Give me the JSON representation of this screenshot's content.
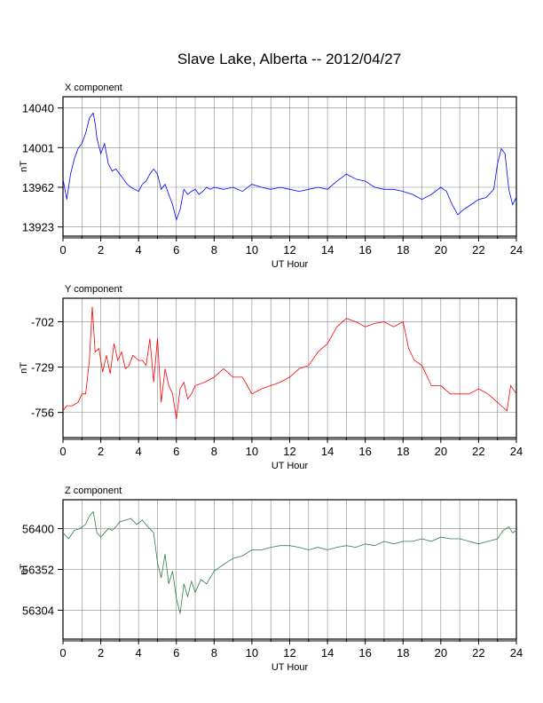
{
  "title": "Slave Lake, Alberta -- 2012/04/27",
  "chart_data": [
    {
      "type": "line",
      "component_label": "X component",
      "xlabel": "UT Hour",
      "ylabel": "nT",
      "xlim": [
        0,
        24
      ],
      "ylim": [
        13914,
        14051
      ],
      "xticks": [
        0,
        2,
        4,
        6,
        8,
        10,
        12,
        14,
        16,
        18,
        20,
        22,
        24
      ],
      "yticks": [
        14040,
        14001,
        13962,
        13923
      ],
      "grid": true,
      "color": "#0000ff",
      "x": [
        0,
        0.2,
        0.4,
        0.6,
        0.8,
        1.0,
        1.2,
        1.4,
        1.6,
        1.7,
        1.8,
        2.0,
        2.2,
        2.4,
        2.6,
        2.8,
        3.0,
        3.2,
        3.4,
        3.6,
        3.8,
        4.0,
        4.2,
        4.4,
        4.6,
        4.8,
        5.0,
        5.2,
        5.4,
        5.6,
        5.8,
        6.0,
        6.2,
        6.4,
        6.6,
        6.8,
        7.0,
        7.2,
        7.4,
        7.6,
        7.8,
        8.0,
        8.5,
        9.0,
        9.5,
        10.0,
        10.5,
        11.0,
        11.5,
        12.0,
        12.5,
        13.0,
        13.5,
        14.0,
        14.5,
        15.0,
        15.5,
        16.0,
        16.5,
        17.0,
        17.5,
        18.0,
        18.5,
        19.0,
        19.5,
        20.0,
        20.3,
        20.6,
        20.9,
        21.2,
        21.6,
        22.0,
        22.4,
        22.8,
        23.0,
        23.2,
        23.4,
        23.6,
        23.8,
        24.0
      ],
      "y": [
        13970,
        13950,
        13975,
        13990,
        14000,
        14005,
        14015,
        14030,
        14035,
        14025,
        14010,
        13995,
        14005,
        13985,
        13978,
        13980,
        13975,
        13970,
        13965,
        13962,
        13960,
        13958,
        13965,
        13968,
        13975,
        13980,
        13975,
        13960,
        13965,
        13955,
        13945,
        13930,
        13940,
        13960,
        13955,
        13958,
        13960,
        13955,
        13958,
        13962,
        13960,
        13962,
        13960,
        13962,
        13958,
        13965,
        13962,
        13960,
        13962,
        13960,
        13958,
        13960,
        13962,
        13960,
        13968,
        13975,
        13970,
        13968,
        13962,
        13960,
        13960,
        13958,
        13955,
        13950,
        13955,
        13962,
        13958,
        13945,
        13935,
        13940,
        13945,
        13950,
        13952,
        13960,
        13985,
        14000,
        13995,
        13960,
        13945,
        13952
      ]
    },
    {
      "type": "line",
      "component_label": "Y component",
      "xlabel": "UT Hour",
      "ylabel": "nT",
      "xlim": [
        0,
        24
      ],
      "ylim": [
        -771,
        -688
      ],
      "xticks": [
        0,
        2,
        4,
        6,
        8,
        10,
        12,
        14,
        16,
        18,
        20,
        22,
        24
      ],
      "yticks": [
        -702,
        -729,
        -756
      ],
      "grid": true,
      "color": "#ff0000",
      "x": [
        0,
        0.2,
        0.5,
        0.8,
        1.0,
        1.2,
        1.4,
        1.55,
        1.7,
        1.9,
        2.1,
        2.3,
        2.5,
        2.7,
        2.9,
        3.1,
        3.3,
        3.5,
        3.7,
        4.0,
        4.2,
        4.4,
        4.6,
        4.8,
        5.0,
        5.2,
        5.4,
        5.6,
        5.8,
        6.0,
        6.2,
        6.4,
        6.6,
        6.8,
        7.0,
        7.5,
        8.0,
        8.5,
        9.0,
        9.5,
        10.0,
        10.5,
        11.0,
        11.5,
        12.0,
        12.5,
        13.0,
        13.5,
        14.0,
        14.5,
        15.0,
        15.5,
        16.0,
        16.5,
        17.0,
        17.5,
        18.0,
        18.3,
        18.6,
        19.0,
        19.5,
        20.0,
        20.5,
        21.0,
        21.5,
        22.0,
        22.5,
        23.0,
        23.3,
        23.5,
        23.7,
        24.0
      ],
      "y": [
        -755,
        -752,
        -752,
        -750,
        -745,
        -745,
        -725,
        -693,
        -720,
        -718,
        -732,
        -722,
        -733,
        -715,
        -725,
        -720,
        -730,
        -728,
        -722,
        -725,
        -725,
        -728,
        -712,
        -738,
        -712,
        -750,
        -730,
        -740,
        -745,
        -760,
        -742,
        -738,
        -748,
        -745,
        -740,
        -738,
        -735,
        -730,
        -735,
        -735,
        -745,
        -742,
        -740,
        -738,
        -735,
        -730,
        -728,
        -720,
        -715,
        -705,
        -700,
        -702,
        -705,
        -703,
        -702,
        -705,
        -702,
        -718,
        -725,
        -728,
        -740,
        -740,
        -745,
        -745,
        -745,
        -742,
        -745,
        -750,
        -753,
        -755,
        -740,
        -745
      ]
    },
    {
      "type": "line",
      "component_label": "Z component",
      "xlabel": "UT Hour",
      "ylabel": "nT",
      "xlim": [
        0,
        24
      ],
      "ylim": [
        56270,
        56434
      ],
      "xticks": [
        0,
        2,
        4,
        6,
        8,
        10,
        12,
        14,
        16,
        18,
        20,
        22,
        24
      ],
      "yticks": [
        56400,
        56352,
        56304
      ],
      "grid": true,
      "color": "#2e7d46",
      "x": [
        0,
        0.3,
        0.6,
        0.9,
        1.2,
        1.4,
        1.6,
        1.8,
        2.0,
        2.2,
        2.4,
        2.6,
        2.8,
        3.0,
        3.3,
        3.6,
        3.9,
        4.2,
        4.5,
        4.8,
        5.0,
        5.2,
        5.4,
        5.6,
        5.8,
        6.0,
        6.2,
        6.4,
        6.6,
        6.8,
        7.0,
        7.3,
        7.6,
        8.0,
        8.5,
        9.0,
        9.5,
        10.0,
        10.5,
        11.0,
        11.5,
        12.0,
        12.5,
        13.0,
        13.5,
        14.0,
        14.5,
        15.0,
        15.5,
        16.0,
        16.5,
        17.0,
        17.5,
        18.0,
        18.5,
        19.0,
        19.5,
        20.0,
        20.5,
        21.0,
        21.5,
        22.0,
        22.5,
        23.0,
        23.3,
        23.6,
        23.8,
        24.0
      ],
      "y": [
        56395,
        56388,
        56398,
        56400,
        56405,
        56415,
        56420,
        56395,
        56390,
        56395,
        56400,
        56398,
        56402,
        56408,
        56410,
        56412,
        56405,
        56410,
        56402,
        56395,
        56360,
        56342,
        56370,
        56335,
        56350,
        56318,
        56300,
        56335,
        56320,
        56338,
        56325,
        56340,
        56335,
        56350,
        56358,
        56365,
        56368,
        56375,
        56375,
        56378,
        56380,
        56380,
        56378,
        56375,
        56378,
        56375,
        56378,
        56380,
        56378,
        56382,
        56380,
        56385,
        56382,
        56385,
        56385,
        56388,
        56385,
        56390,
        56388,
        56388,
        56385,
        56382,
        56385,
        56388,
        56398,
        56402,
        56395,
        56398
      ]
    }
  ]
}
